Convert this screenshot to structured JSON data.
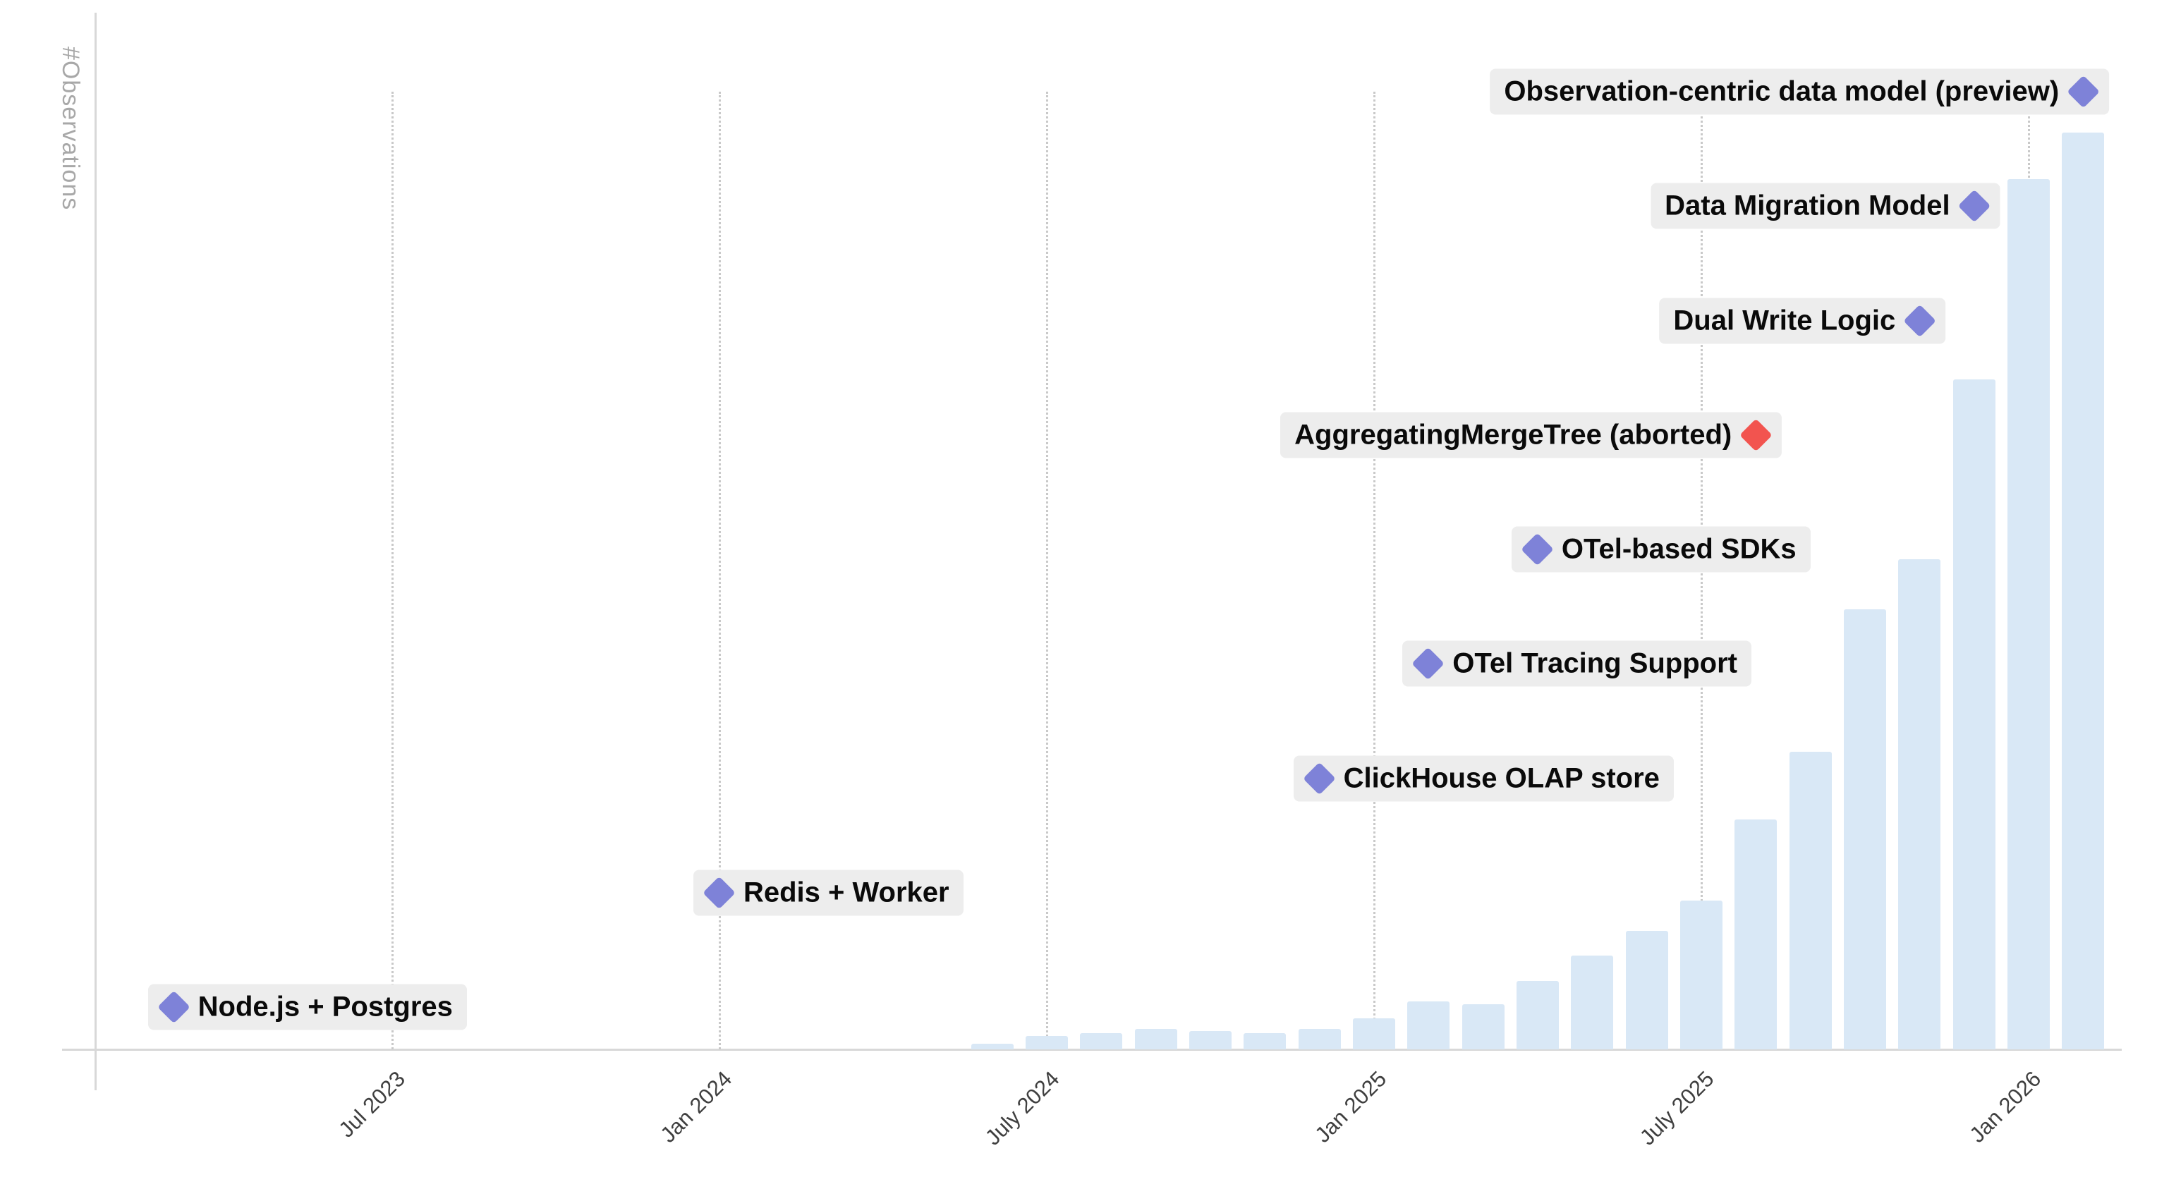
{
  "chart_data": {
    "type": "bar",
    "title": "",
    "xlabel": "",
    "ylabel": "#Observations",
    "grid": "vertical dotted lines at half-year ticks",
    "legend": null,
    "y_axis": {
      "numeric_tick_labels_visible": false,
      "unit": "relative observation volume (max bar = 100)"
    },
    "x_ticks": [
      {
        "label": "Jul 2023",
        "month": "2023-07"
      },
      {
        "label": "Jan 2024",
        "month": "2024-01"
      },
      {
        "label": "July 2024",
        "month": "2024-07"
      },
      {
        "label": "Jan 2025",
        "month": "2025-01"
      },
      {
        "label": "July 2025",
        "month": "2025-07"
      },
      {
        "label": "Jan 2026",
        "month": "2026-01"
      }
    ],
    "bars": {
      "months": [
        "2024-06",
        "2024-07",
        "2024-08",
        "2024-09",
        "2024-10",
        "2024-11",
        "2024-12",
        "2025-01",
        "2025-02",
        "2025-03",
        "2025-04",
        "2025-05",
        "2025-06",
        "2025-07",
        "2025-08",
        "2025-09",
        "2025-10",
        "2025-11",
        "2025-12",
        "2026-01",
        "2026-02"
      ],
      "values": [
        0.6,
        1.5,
        1.8,
        2.2,
        2.0,
        1.8,
        2.2,
        3.4,
        5.2,
        4.9,
        7.5,
        10.2,
        12.9,
        16.2,
        25.1,
        32.5,
        48.0,
        53.5,
        73.1,
        94.9,
        100
      ]
    },
    "milestones": [
      {
        "label": "Node.js + Postgres",
        "month": "2023-03",
        "marker_color": "#7e82d8",
        "label_side": "right"
      },
      {
        "label": "Redis + Worker",
        "month": "2024-01",
        "marker_color": "#7e82d8",
        "label_side": "right"
      },
      {
        "label": "ClickHouse OLAP store",
        "month": "2024-12",
        "marker_color": "#7e82d8",
        "label_side": "right"
      },
      {
        "label": "OTel Tracing Support",
        "month": "2025-02",
        "marker_color": "#7e82d8",
        "label_side": "right"
      },
      {
        "label": "OTel-based SDKs",
        "month": "2025-04",
        "marker_color": "#7e82d8",
        "label_side": "right"
      },
      {
        "label": "AggregatingMergeTree (aborted)",
        "month": "2025-08",
        "marker_color": "#f2544f",
        "label_side": "left"
      },
      {
        "label": "Dual Write Logic",
        "month": "2025-11",
        "marker_color": "#7e82d8",
        "label_side": "left"
      },
      {
        "label": "Data Migration Model",
        "month": "2025-12",
        "marker_color": "#7e82d8",
        "label_side": "left"
      },
      {
        "label": "Observation-centric data model (preview)",
        "month": "2026-02",
        "marker_color": "#7e82d8",
        "label_side": "left"
      }
    ],
    "colors": {
      "bar": "#d9e8f6",
      "milestone_marker": "#7e82d8",
      "aborted_marker": "#f2544f",
      "label_chip_bg": "#ededed",
      "label_text": "#0a0a0a",
      "gridline": "#c9c9c9",
      "axis_line": "#d8d8d8",
      "tick_text": "#3f3f3f",
      "ylabel_text": "#a8a8a8"
    }
  }
}
